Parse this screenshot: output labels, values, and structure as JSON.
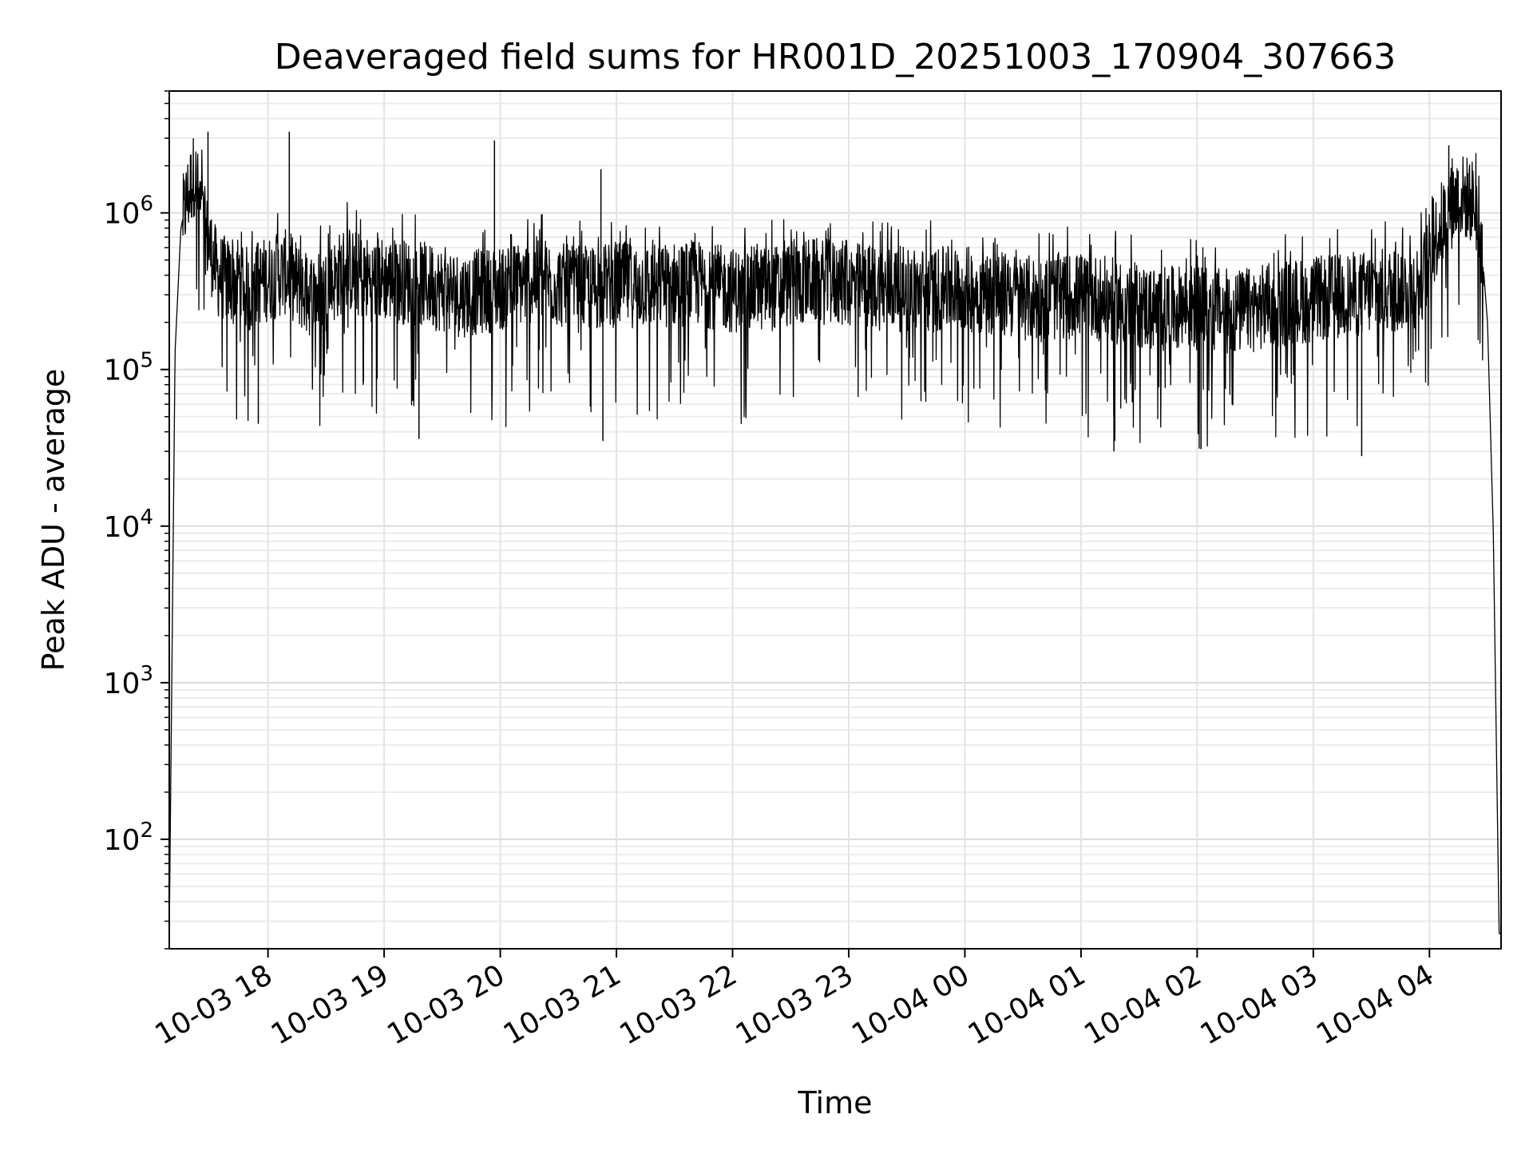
{
  "chart_data": {
    "type": "line",
    "title": "Deaveraged field sums for HR001D_20251003_170904_307663",
    "xlabel": "Time",
    "ylabel": "Peak ADU - average",
    "yscale": "log",
    "ylim": [
      20,
      6000000
    ],
    "xlim": [
      "2025-10-03 17:09",
      "2025-10-04 04:37"
    ],
    "grid": true,
    "x_ticks": [
      "2025-10-03 18:00",
      "2025-10-03 19:00",
      "2025-10-03 20:00",
      "2025-10-03 21:00",
      "2025-10-03 22:00",
      "2025-10-03 23:00",
      "2025-10-04 00:00",
      "2025-10-04 01:00",
      "2025-10-04 02:00",
      "2025-10-04 03:00",
      "2025-10-04 04:00"
    ],
    "x_tick_labels": [
      "10-03 18",
      "10-03 19",
      "10-03 20",
      "10-03 21",
      "10-03 22",
      "10-03 23",
      "10-04 00",
      "10-04 01",
      "10-04 02",
      "10-04 03",
      "10-04 04"
    ],
    "y_ticks": [
      100,
      1000,
      10000,
      100000,
      1000000
    ],
    "y_tick_labels": [
      {
        "base": "10",
        "exp": "2"
      },
      {
        "base": "10",
        "exp": "3"
      },
      {
        "base": "10",
        "exp": "4"
      },
      {
        "base": "10",
        "exp": "5"
      },
      {
        "base": "10",
        "exp": "6"
      }
    ],
    "line_color": "#000000",
    "series": [
      {
        "x": [
          "2025-10-03 17:09",
          "2025-10-03 17:12",
          "2025-10-03 17:15",
          "2025-10-03 17:18",
          "2025-10-03 17:22",
          "2025-10-03 17:26",
          "2025-10-03 17:30",
          "2025-10-03 17:34",
          "2025-10-03 17:38",
          "2025-10-03 17:42",
          "2025-10-03 17:46",
          "2025-10-03 17:50",
          "2025-10-03 17:55",
          "2025-10-03 18:00",
          "2025-10-03 18:10",
          "2025-10-03 18:20",
          "2025-10-03 18:30",
          "2025-10-03 18:40",
          "2025-10-03 18:50",
          "2025-10-03 19:00",
          "2025-10-03 19:20",
          "2025-10-03 19:40",
          "2025-10-03 20:00",
          "2025-10-03 20:20",
          "2025-10-03 20:40",
          "2025-10-03 21:00",
          "2025-10-03 21:20",
          "2025-10-03 21:40",
          "2025-10-03 22:00",
          "2025-10-03 22:20",
          "2025-10-03 22:40",
          "2025-10-03 23:00",
          "2025-10-03 23:20",
          "2025-10-03 23:40",
          "2025-10-04 00:00",
          "2025-10-04 00:20",
          "2025-10-04 00:40",
          "2025-10-04 01:00",
          "2025-10-04 01:20",
          "2025-10-04 01:40",
          "2025-10-04 02:00",
          "2025-10-04 02:20",
          "2025-10-04 02:40",
          "2025-10-04 03:00",
          "2025-10-04 03:20",
          "2025-10-04 03:40",
          "2025-10-04 03:55",
          "2025-10-04 04:05",
          "2025-10-04 04:15",
          "2025-10-04 04:22",
          "2025-10-04 04:26",
          "2025-10-04 04:30",
          "2025-10-04 04:33",
          "2025-10-04 04:36"
        ],
        "y": [
          25,
          130000,
          800000,
          1200000,
          1800000,
          900000,
          600000,
          400000,
          380000,
          350000,
          420000,
          300000,
          360000,
          380000,
          420000,
          300000,
          320000,
          450000,
          380000,
          380000,
          350000,
          300000,
          330000,
          380000,
          320000,
          350000,
          340000,
          360000,
          320000,
          330000,
          370000,
          350000,
          330000,
          320000,
          330000,
          300000,
          280000,
          300000,
          270000,
          240000,
          250000,
          230000,
          260000,
          280000,
          300000,
          320000,
          350000,
          800000,
          1300000,
          1200000,
          900000,
          200000,
          9000,
          25
        ]
      }
    ],
    "spikes": [
      {
        "x": "2025-10-03 17:29",
        "y": 3300000
      },
      {
        "x": "2025-10-03 18:11",
        "y": 3300000
      },
      {
        "x": "2025-10-03 19:57",
        "y": 2900000
      },
      {
        "x": "2025-10-03 20:52",
        "y": 1900000
      },
      {
        "x": "2025-10-04 04:10",
        "y": 2700000
      },
      {
        "x": "2025-10-03 17:55",
        "y": 45000
      },
      {
        "x": "2025-10-03 19:18",
        "y": 36000
      },
      {
        "x": "2025-10-03 20:53",
        "y": 35000
      },
      {
        "x": "2025-10-04 01:17",
        "y": 30000
      },
      {
        "x": "2025-10-04 02:02",
        "y": 31000
      },
      {
        "x": "2025-10-04 03:25",
        "y": 28000
      }
    ]
  }
}
